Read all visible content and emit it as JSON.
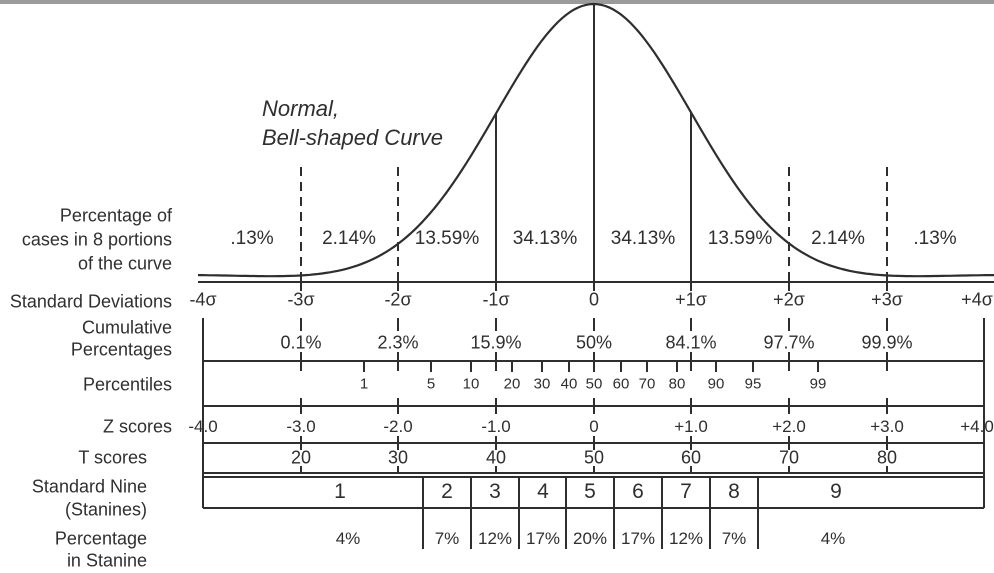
{
  "title": [
    "Normal,",
    "Bell-shaped Curve"
  ],
  "left_labels": {
    "portions": [
      "Percentage of",
      "cases in 8 portions",
      "of the curve"
    ],
    "sd": "Standard Deviations",
    "cumulative": [
      "Cumulative",
      "Percentages"
    ],
    "percentiles": "Percentiles",
    "z": "Z scores",
    "t": "T scores",
    "stanine": [
      "Standard Nine",
      "(Stanines)"
    ],
    "stanine_pct": [
      "Percentage",
      "in Stanine"
    ]
  },
  "labels": {
    "portions": [
      ".13%",
      "2.14%",
      "13.59%",
      "34.13%",
      "34.13%",
      "13.59%",
      "2.14%",
      ".13%"
    ],
    "sd": [
      "-4σ",
      "-3σ",
      "-2σ",
      "-1σ",
      "0",
      "+1σ",
      "+2σ",
      "+3σ",
      "+4σ"
    ],
    "cumulative": [
      "0.1%",
      "2.3%",
      "15.9%",
      "50%",
      "84.1%",
      "97.7%",
      "99.9%"
    ],
    "percentiles": [
      "1",
      "5",
      "10",
      "20",
      "30",
      "40",
      "50",
      "60",
      "70",
      "80",
      "90",
      "95",
      "99"
    ],
    "z": [
      "-4.0",
      "-3.0",
      "-2.0",
      "-1.0",
      "0",
      "+1.0",
      "+2.0",
      "+3.0",
      "+4.0"
    ],
    "t": [
      "20",
      "30",
      "40",
      "50",
      "60",
      "70",
      "80"
    ],
    "stanine": [
      "1",
      "2",
      "3",
      "4",
      "5",
      "6",
      "7",
      "8",
      "9"
    ],
    "stanine_pct": [
      "4%",
      "7%",
      "12%",
      "17%",
      "20%",
      "17%",
      "12%",
      "7%",
      "4%"
    ]
  },
  "colors": {
    "line": "#2e2e2e",
    "text": "#2f2f2f",
    "top_bar": "#9b9b9b",
    "background": "#ffffff"
  },
  "chart_data": {
    "type": "area",
    "title": "Normal, Bell-shaped Curve",
    "curve": "standard normal (Gaussian) probability density, mean 0, drawn from -4σ to +4σ",
    "x_range_sigma": [
      -4,
      4
    ],
    "grid": "off",
    "portion_percentages": {
      "label": "Percentage of cases in 8 portions of the curve",
      "intervals": [
        "-4σ to -3σ",
        "-3σ to -2σ",
        "-2σ to -1σ",
        "-1σ to 0",
        "0 to +1σ",
        "+1σ to +2σ",
        "+2σ to +3σ",
        "+3σ to +4σ"
      ],
      "values_pct": [
        0.13,
        2.14,
        13.59,
        34.13,
        34.13,
        13.59,
        2.14,
        0.13
      ]
    },
    "scales": [
      {
        "name": "Standard Deviations",
        "positions_sigma": [
          -4,
          -3,
          -2,
          -1,
          0,
          1,
          2,
          3,
          4
        ],
        "values": [
          "-4σ",
          "-3σ",
          "-2σ",
          "-1σ",
          "0",
          "+1σ",
          "+2σ",
          "+3σ",
          "+4σ"
        ]
      },
      {
        "name": "Cumulative Percentages",
        "positions_sigma": [
          -3,
          -2,
          -1,
          0,
          1,
          2,
          3
        ],
        "values": [
          0.1,
          2.3,
          15.9,
          50,
          84.1,
          97.7,
          99.9
        ]
      },
      {
        "name": "Percentiles",
        "values": [
          1,
          5,
          10,
          20,
          30,
          40,
          50,
          60,
          70,
          80,
          90,
          95,
          99
        ]
      },
      {
        "name": "Z scores",
        "positions_sigma": [
          -4,
          -3,
          -2,
          -1,
          0,
          1,
          2,
          3,
          4
        ],
        "values": [
          -4.0,
          -3.0,
          -2.0,
          -1.0,
          0,
          1.0,
          2.0,
          3.0,
          4.0
        ]
      },
      {
        "name": "T scores",
        "positions_sigma": [
          -3,
          -2,
          -1,
          0,
          1,
          2,
          3
        ],
        "values": [
          20,
          30,
          40,
          50,
          60,
          70,
          80
        ]
      },
      {
        "name": "Standard Nine (Stanines)",
        "values": [
          1,
          2,
          3,
          4,
          5,
          6,
          7,
          8,
          9
        ],
        "boundaries_sigma": [
          -1.75,
          -1.25,
          -0.75,
          -0.25,
          0.25,
          0.75,
          1.25,
          1.75
        ]
      },
      {
        "name": "Percentage in Stanine",
        "values_pct": [
          4,
          7,
          12,
          17,
          20,
          17,
          12,
          7,
          4
        ]
      }
    ]
  }
}
